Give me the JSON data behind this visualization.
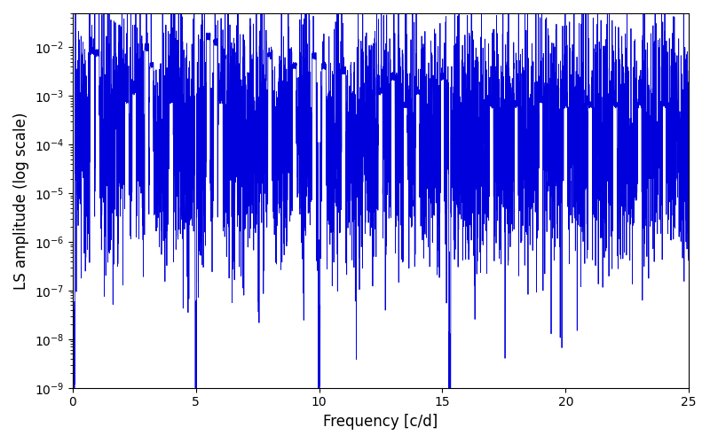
{
  "xlabel": "Frequency [c/d]",
  "ylabel": "LS amplitude (log scale)",
  "xlim": [
    0,
    25
  ],
  "ylim": [
    1e-09,
    0.05
  ],
  "line_color": "#0000dd",
  "line_width": 0.6,
  "background_color": "#ffffff",
  "figsize": [
    8.0,
    5.0
  ],
  "dpi": 100,
  "seed": 77,
  "n_points": 6000
}
